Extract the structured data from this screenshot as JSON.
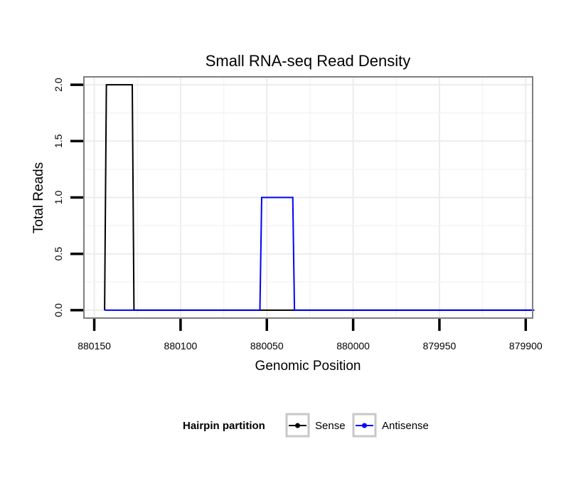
{
  "chart_data": {
    "type": "line",
    "title": "Small RNA-seq Read Density",
    "xlabel": "Genomic Position",
    "ylabel": "Total Reads",
    "x_reversed": true,
    "xlim": [
      880156,
      879896
    ],
    "ylim": [
      -0.07,
      2.07
    ],
    "x_ticks": [
      880150,
      880100,
      880050,
      880000,
      879950,
      879900
    ],
    "x_tick_labels": [
      "880150",
      "880100",
      "880050",
      "880000",
      "879950",
      "879900"
    ],
    "y_ticks": [
      0.0,
      0.5,
      1.0,
      1.5,
      2.0
    ],
    "y_tick_labels": [
      "0.0",
      "0.5",
      "1.0",
      "1.5",
      "2.0"
    ],
    "grid": true,
    "legend": {
      "title": "Hairpin partition",
      "position": "bottom",
      "entries": [
        {
          "label": "Sense",
          "color": "#000000"
        },
        {
          "label": "Antisense",
          "color": "#0000ff"
        }
      ]
    },
    "series": [
      {
        "name": "Sense",
        "color": "#000000",
        "x": [
          880144,
          880143,
          880128,
          880127,
          879895
        ],
        "y": [
          0,
          2,
          2,
          0,
          0
        ]
      },
      {
        "name": "Antisense",
        "color": "#0000ff",
        "x": [
          880144,
          880054,
          880053,
          880035,
          880034,
          879895
        ],
        "y": [
          0,
          0,
          1,
          1,
          0,
          0
        ]
      }
    ]
  }
}
